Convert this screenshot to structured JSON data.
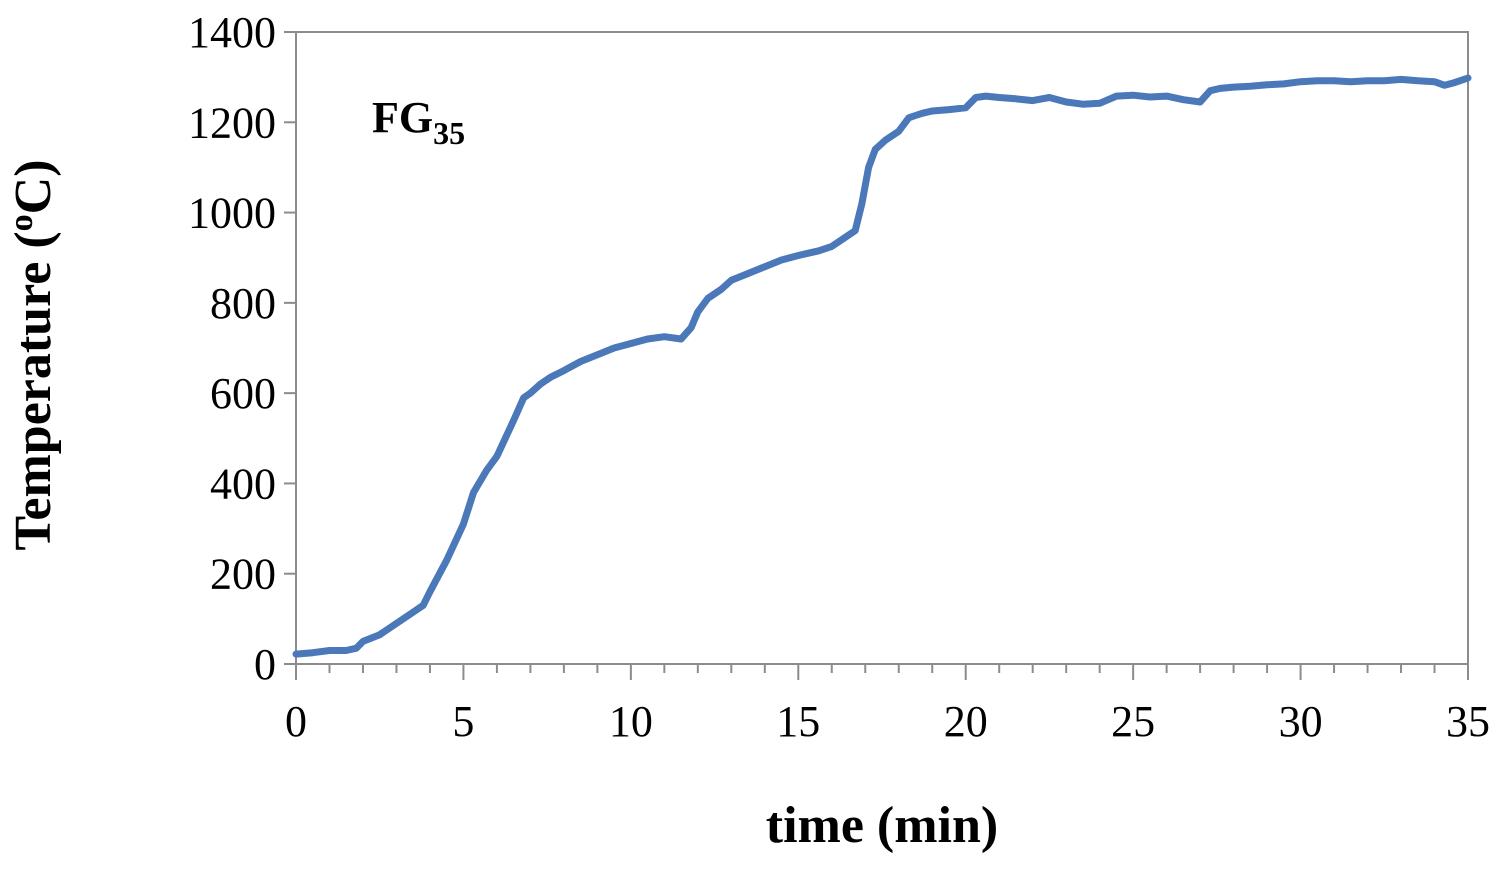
{
  "chart_data": {
    "type": "line",
    "title": "",
    "xlabel": "time (min)",
    "ylabel_main": "Temperature (",
    "ylabel_sup": "o",
    "ylabel_end": "C)",
    "xlim": [
      0,
      35
    ],
    "ylim": [
      0,
      1400
    ],
    "xticks": [
      "0",
      "5",
      "10",
      "15",
      "20",
      "25",
      "30",
      "35"
    ],
    "yticks": [
      "0",
      "200",
      "400",
      "600",
      "800",
      "1000",
      "1200",
      "1400"
    ],
    "grid": false,
    "legend": "none",
    "line_color": "#4a78b8",
    "annotation": {
      "main": "FG",
      "sub": "35"
    },
    "series": [
      {
        "x": [
          0,
          0.5,
          1,
          1.5,
          1.8,
          2,
          2.5,
          3,
          3.5,
          3.8,
          4,
          4.5,
          5,
          5.3,
          5.7,
          6,
          6.5,
          6.8,
          7,
          7.3,
          7.6,
          8,
          8.5,
          9,
          9.5,
          10,
          10.5,
          11,
          11.5,
          11.8,
          12,
          12.3,
          12.7,
          13,
          13.5,
          14,
          14.5,
          15,
          15.3,
          15.6,
          16,
          16.3,
          16.7,
          16.9,
          17.1,
          17.3,
          17.6,
          18,
          18.3,
          18.5,
          18.7,
          19,
          19.5,
          20,
          20.3,
          20.6,
          21,
          21.5,
          22,
          22.5,
          23,
          23.5,
          24,
          24.5,
          25,
          25.5,
          26,
          26.5,
          27,
          27.3,
          27.6,
          28,
          28.5,
          29,
          29.5,
          30,
          30.5,
          31,
          31.5,
          32,
          32.5,
          33,
          33.5,
          34,
          34.3,
          34.6,
          35
        ],
        "y": [
          22,
          25,
          30,
          30,
          35,
          50,
          65,
          90,
          115,
          130,
          160,
          230,
          310,
          380,
          430,
          460,
          540,
          590,
          600,
          620,
          635,
          650,
          670,
          685,
          700,
          710,
          720,
          725,
          720,
          745,
          780,
          810,
          830,
          850,
          865,
          880,
          895,
          905,
          910,
          915,
          925,
          940,
          960,
          1020,
          1100,
          1140,
          1160,
          1180,
          1210,
          1215,
          1220,
          1225,
          1228,
          1232,
          1255,
          1258,
          1255,
          1252,
          1248,
          1255,
          1245,
          1240,
          1242,
          1258,
          1260,
          1256,
          1258,
          1250,
          1245,
          1270,
          1275,
          1278,
          1280,
          1283,
          1285,
          1290,
          1292,
          1292,
          1290,
          1292,
          1292,
          1295,
          1292,
          1290,
          1282,
          1288,
          1298
        ]
      }
    ]
  }
}
